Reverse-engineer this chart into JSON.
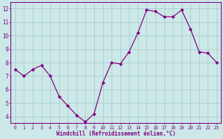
{
  "x": [
    0,
    1,
    2,
    3,
    4,
    5,
    6,
    7,
    8,
    9,
    10,
    11,
    12,
    13,
    14,
    15,
    16,
    17,
    18,
    19,
    20,
    21,
    22,
    23
  ],
  "y": [
    7.5,
    7.0,
    7.5,
    7.8,
    7.0,
    5.5,
    4.8,
    4.1,
    3.6,
    4.2,
    6.5,
    8.0,
    7.9,
    8.8,
    10.2,
    11.9,
    11.8,
    11.4,
    11.4,
    11.9,
    10.5,
    8.8,
    8.7,
    8.0
  ],
  "xlabel": "Windchill (Refroidissement éolien,°C)",
  "xlim": [
    -0.5,
    23.5
  ],
  "ylim": [
    3.5,
    12.5
  ],
  "yticks": [
    4,
    5,
    6,
    7,
    8,
    9,
    10,
    11,
    12
  ],
  "xticks": [
    0,
    1,
    2,
    3,
    4,
    5,
    6,
    7,
    8,
    9,
    10,
    11,
    12,
    13,
    14,
    15,
    16,
    17,
    18,
    19,
    20,
    21,
    22,
    23
  ],
  "line_color": "#800080",
  "marker_color": "#800080",
  "bg_color": "#cce8e8",
  "grid_color": "#aacccc",
  "axis_color": "#800080",
  "tick_color": "#800080",
  "label_color": "#800080",
  "xlabel_fontsize": 5.5,
  "xtick_fontsize": 4.8,
  "ytick_fontsize": 5.5
}
